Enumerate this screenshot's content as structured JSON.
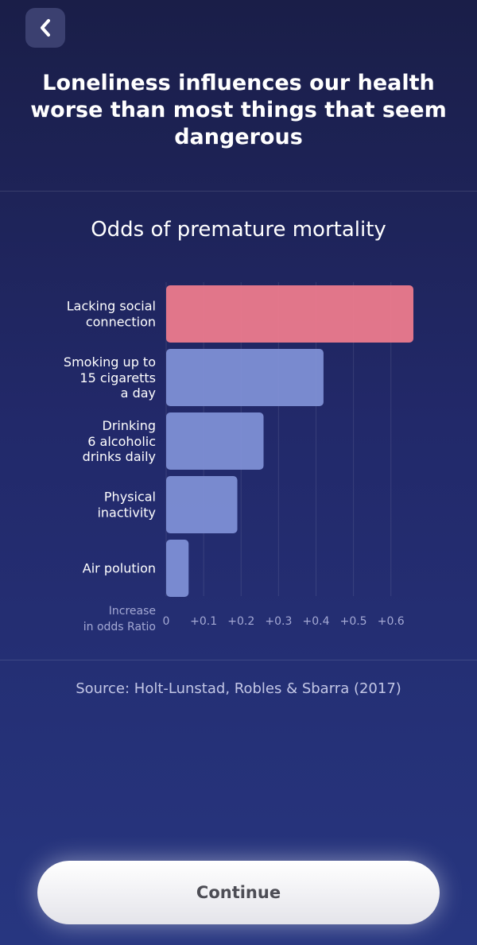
{
  "header": {
    "title": "Loneliness influences our health worse than most things that seem dangerous"
  },
  "chart_data": {
    "type": "bar",
    "orientation": "horizontal",
    "title": "Odds of premature mortality",
    "categories": [
      "Lacking social\nconnection",
      "Smoking up to\n15 cigaretts\na day",
      "Drinking\n6 alcoholic\ndrinks daily",
      "Physical\ninactivity",
      "Air polution"
    ],
    "values": [
      0.66,
      0.42,
      0.26,
      0.19,
      0.06
    ],
    "colors": [
      "#f27d8e",
      "#8192d8",
      "#8192d8",
      "#8192d8",
      "#8192d8"
    ],
    "x_label": "Increase\nin odds Ratio",
    "xlim": [
      0,
      0.66
    ],
    "xticks": [
      0,
      {
        "value": 0.1,
        "label": "+0.1"
      },
      {
        "value": 0.2,
        "label": "+0.2"
      },
      {
        "value": 0.3,
        "label": "+0.3"
      },
      {
        "value": 0.4,
        "label": "+0.4"
      },
      {
        "value": 0.5,
        "label": "+0.5"
      },
      {
        "value": 0.6,
        "label": "+0.6"
      }
    ],
    "grid": true
  },
  "source": "Source: Holt-Lunstad, Robles & Sbarra (2017)",
  "button": "Continue"
}
